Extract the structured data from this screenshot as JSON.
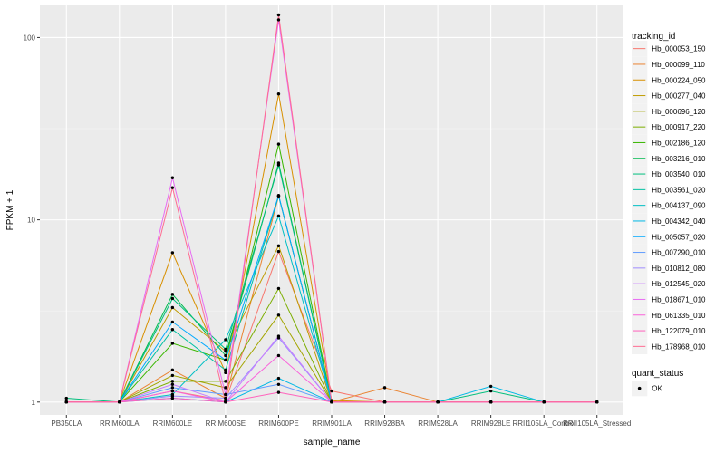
{
  "chart_data": {
    "type": "line",
    "title": "",
    "xlabel": "sample_name",
    "ylabel": "FPKM + 1",
    "yscale": "log10",
    "ylim": [
      0.85,
      150
    ],
    "y_ticks": [
      1,
      10,
      100
    ],
    "y_tick_labels": [
      "1",
      "10",
      "100"
    ],
    "grid": true,
    "legend_position": "right",
    "categories": [
      "PB350LA",
      "RRIM600LA",
      "RRIM600LE",
      "RRIM600SE",
      "RRIM600PE",
      "RRIM901LA",
      "RRIM928BA",
      "RRIM928LA",
      "RRIM928LE",
      "RRII105LA_Control",
      "RRII105LA_Stressed"
    ],
    "legend": {
      "title": "tracking_id",
      "entries": [
        "Hb_000053_150",
        "Hb_000099_110",
        "Hb_000224_050",
        "Hb_000277_040",
        "Hb_000696_120",
        "Hb_000917_220",
        "Hb_002186_120",
        "Hb_003216_010",
        "Hb_003540_010",
        "Hb_003561_020",
        "Hb_004137_090",
        "Hb_004342_040",
        "Hb_005057_020",
        "Hb_007290_010",
        "Hb_010812_080",
        "Hb_012545_020",
        "Hb_018671_010",
        "Hb_061335_010",
        "Hb_122079_010",
        "Hb_178968_010"
      ]
    },
    "point_legend": {
      "title": "quant_status",
      "entries": [
        "OK"
      ]
    },
    "series": [
      {
        "name": "Hb_000053_150",
        "color": "#F8766D",
        "values": [
          1.0,
          1.0,
          1.15,
          1.02,
          6.7,
          1.15,
          1.0,
          1.0,
          1.0,
          1.0,
          1.0
        ]
      },
      {
        "name": "Hb_000099_110",
        "color": "#EA8331",
        "values": [
          1.0,
          1.0,
          1.5,
          1.05,
          13.5,
          1.0,
          1.2,
          1.0,
          1.0,
          1.0,
          1.0
        ]
      },
      {
        "name": "Hb_000224_050",
        "color": "#D89000",
        "values": [
          1.0,
          1.0,
          6.6,
          1.45,
          49.0,
          1.02,
          1.0,
          1.0,
          1.0,
          1.0,
          1.0
        ]
      },
      {
        "name": "Hb_000277_040",
        "color": "#C09B00",
        "values": [
          1.0,
          1.0,
          3.3,
          1.9,
          7.2,
          1.0,
          1.0,
          1.0,
          1.0,
          1.0,
          1.0
        ]
      },
      {
        "name": "Hb_000696_120",
        "color": "#A3A500",
        "values": [
          1.0,
          1.0,
          1.4,
          1.2,
          3.0,
          1.0,
          1.0,
          1.0,
          1.0,
          1.0,
          1.0
        ]
      },
      {
        "name": "Hb_000917_220",
        "color": "#7CAE00",
        "values": [
          1.0,
          1.0,
          1.3,
          1.3,
          4.2,
          1.0,
          1.0,
          1.0,
          1.0,
          1.0,
          1.0
        ]
      },
      {
        "name": "Hb_002186_120",
        "color": "#39B600",
        "values": [
          1.0,
          1.0,
          2.1,
          1.7,
          26.0,
          1.0,
          1.0,
          1.0,
          1.0,
          1.0,
          1.0
        ]
      },
      {
        "name": "Hb_003216_010",
        "color": "#00BB4E",
        "values": [
          1.0,
          1.0,
          3.9,
          1.8,
          20.5,
          1.0,
          1.0,
          1.0,
          1.0,
          1.0,
          1.0
        ]
      },
      {
        "name": "Hb_003540_010",
        "color": "#00BF7D",
        "values": [
          1.05,
          1.0,
          3.7,
          1.95,
          20.0,
          1.0,
          1.0,
          1.0,
          1.15,
          1.0,
          1.0
        ]
      },
      {
        "name": "Hb_003561_020",
        "color": "#00C1A3",
        "values": [
          1.0,
          1.0,
          2.5,
          1.5,
          13.5,
          1.0,
          1.0,
          1.0,
          1.0,
          1.0,
          1.0
        ]
      },
      {
        "name": "Hb_004137_090",
        "color": "#00BFC4",
        "values": [
          1.0,
          1.0,
          1.1,
          2.2,
          10.5,
          1.0,
          1.0,
          1.0,
          1.0,
          1.0,
          1.0
        ]
      },
      {
        "name": "Hb_004342_040",
        "color": "#00B8E5",
        "values": [
          1.0,
          1.0,
          1.05,
          1.0,
          1.35,
          1.0,
          1.0,
          1.0,
          1.22,
          1.0,
          1.0
        ]
      },
      {
        "name": "Hb_005057_020",
        "color": "#00A9FF",
        "values": [
          1.0,
          1.0,
          2.75,
          1.7,
          13.6,
          1.0,
          1.0,
          1.0,
          1.0,
          1.0,
          1.0
        ]
      },
      {
        "name": "Hb_007290_010",
        "color": "#619CFF",
        "values": [
          1.0,
          1.0,
          1.2,
          1.1,
          1.25,
          1.0,
          1.0,
          1.0,
          1.0,
          1.0,
          1.0
        ]
      },
      {
        "name": "Hb_010812_080",
        "color": "#9F8CFF",
        "values": [
          1.0,
          1.0,
          1.08,
          1.05,
          2.25,
          1.0,
          1.0,
          1.0,
          1.0,
          1.0,
          1.0
        ]
      },
      {
        "name": "Hb_012545_020",
        "color": "#C77CFF",
        "values": [
          1.0,
          1.0,
          1.25,
          1.0,
          2.3,
          1.0,
          1.0,
          1.0,
          1.0,
          1.0,
          1.0
        ]
      },
      {
        "name": "Hb_018671_010",
        "color": "#E76BF3",
        "values": [
          1.0,
          1.0,
          17.0,
          1.1,
          125.0,
          1.0,
          1.0,
          1.0,
          1.0,
          1.0,
          1.0
        ]
      },
      {
        "name": "Hb_061335_010",
        "color": "#FA62DB",
        "values": [
          1.0,
          1.0,
          1.15,
          1.0,
          1.8,
          1.0,
          1.0,
          1.0,
          1.0,
          1.0,
          1.0
        ]
      },
      {
        "name": "Hb_122079_010",
        "color": "#FF62BC",
        "values": [
          1.0,
          1.0,
          1.05,
          1.0,
          1.13,
          1.0,
          1.0,
          1.0,
          1.0,
          1.0,
          1.0
        ]
      },
      {
        "name": "Hb_178968_010",
        "color": "#FF6C91",
        "values": [
          1.0,
          1.0,
          15.0,
          1.0,
          133.0,
          1.0,
          1.0,
          1.0,
          1.0,
          1.0,
          1.0
        ]
      }
    ]
  }
}
